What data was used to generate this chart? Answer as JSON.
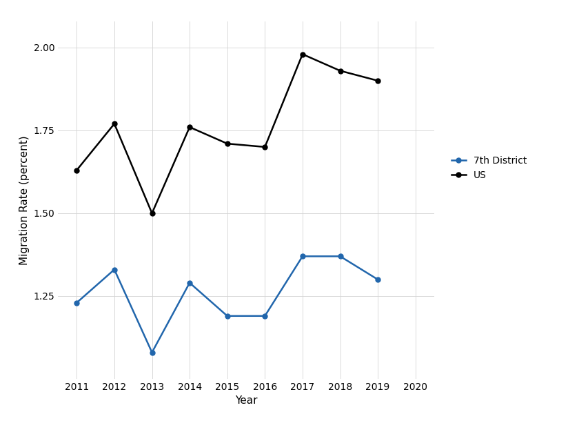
{
  "years": [
    2011,
    2012,
    2013,
    2014,
    2015,
    2016,
    2017,
    2018,
    2019
  ],
  "us_values": [
    1.63,
    1.77,
    1.5,
    1.76,
    1.71,
    1.7,
    1.98,
    1.93,
    1.9
  ],
  "district_values": [
    1.23,
    1.33,
    1.08,
    1.29,
    1.19,
    1.19,
    1.37,
    1.37,
    1.3
  ],
  "us_color": "#000000",
  "district_color": "#2166ac",
  "us_label": "US",
  "district_label": "7th District",
  "xlabel": "Year",
  "ylabel": "Migration Rate (percent)",
  "xlim": [
    2010.5,
    2020.5
  ],
  "ylim": [
    1.0,
    2.08
  ],
  "yticks": [
    1.25,
    1.5,
    1.75,
    2.0
  ],
  "xticks": [
    2011,
    2012,
    2013,
    2014,
    2015,
    2016,
    2017,
    2018,
    2019,
    2020
  ],
  "background_color": "#ffffff",
  "grid_color": "#d3d3d3",
  "line_width": 1.8,
  "marker_size": 5,
  "marker_style": "o"
}
